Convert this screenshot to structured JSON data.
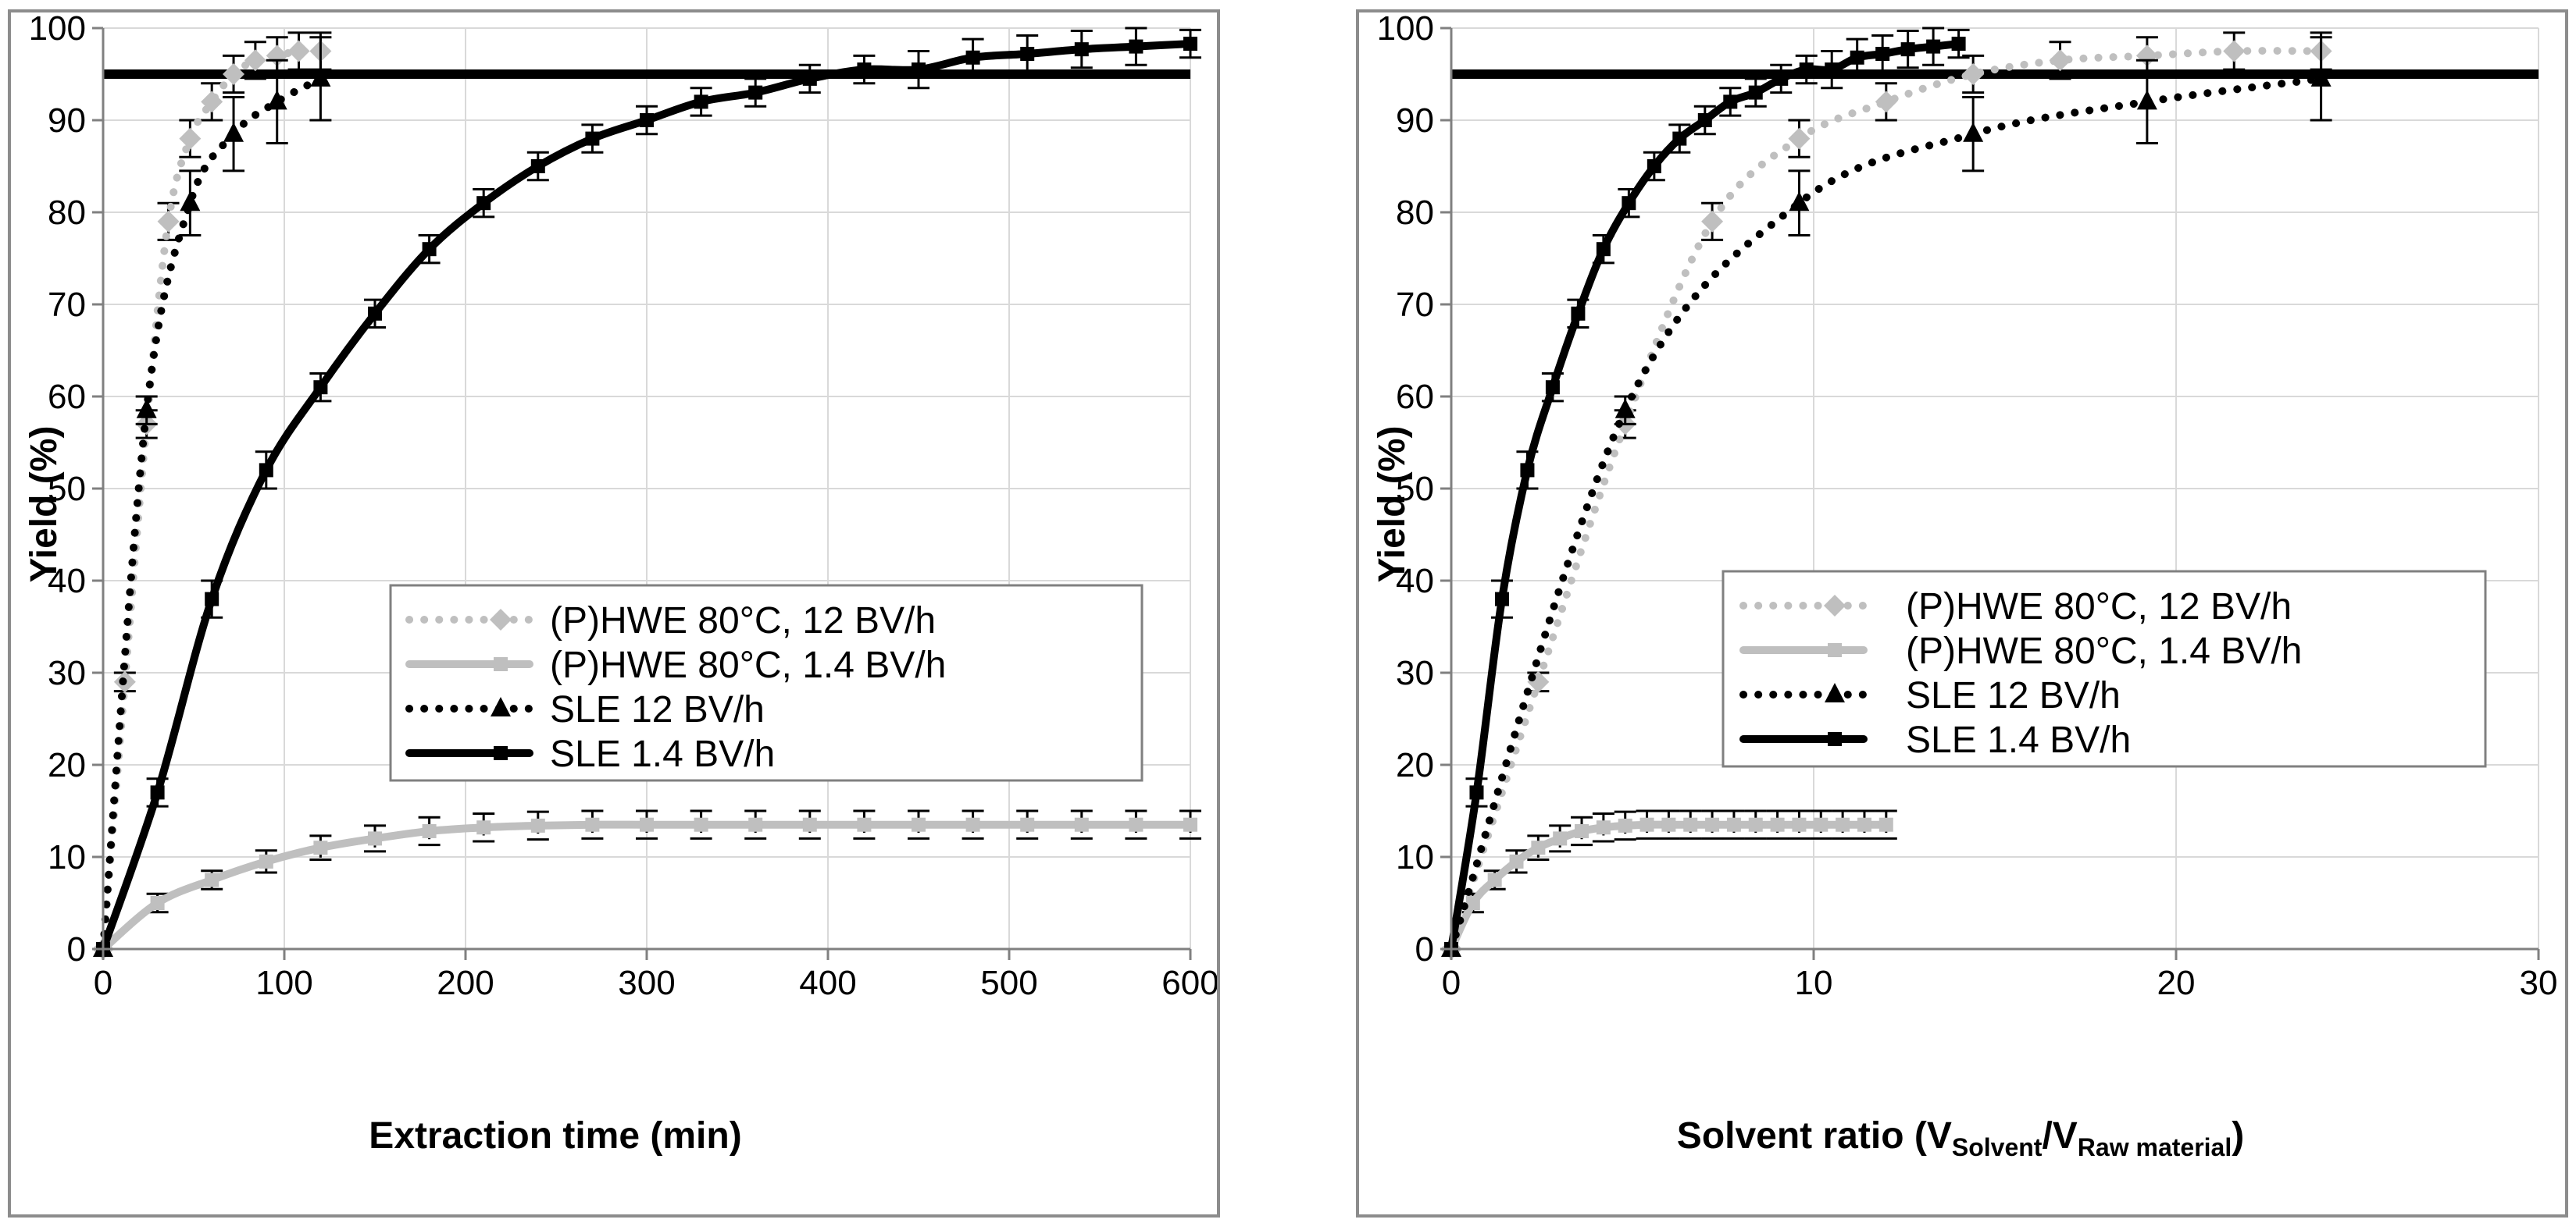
{
  "chart_data": [
    {
      "type": "line",
      "xlabel": "Extraction time (min)",
      "ylabel": "Yield (%)",
      "xlim": [
        0,
        600
      ],
      "ylim": [
        0,
        100
      ],
      "xticks": [
        0,
        100,
        200,
        300,
        400,
        500,
        600
      ],
      "yticks": [
        0,
        10,
        20,
        30,
        40,
        50,
        60,
        70,
        80,
        90,
        100
      ],
      "xtick_labels": [
        "0",
        "100",
        "200",
        "300",
        "400",
        "500",
        "600"
      ],
      "ytick_labels": [
        "0",
        "10",
        "20",
        "30",
        "40",
        "50",
        "60",
        "70",
        "80",
        "90",
        "100"
      ],
      "grid": true,
      "reference_line": 95,
      "legend_position": "center-right",
      "series": [
        {
          "name": "(P)HWE 80°C, 12 BV/h",
          "style": "dotted",
          "color": "#bfbfbf",
          "marker": "diamond",
          "x": [
            0,
            12,
            24,
            36,
            48,
            60,
            72,
            84,
            96,
            108,
            120
          ],
          "y": [
            0,
            29,
            57,
            79,
            88,
            92,
            95,
            96.5,
            97,
            97.5,
            97.5
          ],
          "err": [
            0,
            1,
            1.5,
            2,
            2,
            2,
            2,
            2,
            2,
            2,
            2
          ]
        },
        {
          "name": "(P)HWE 80°C, 1.4 BV/h",
          "style": "solid",
          "color": "#bfbfbf",
          "marker": "square",
          "x": [
            0,
            30,
            60,
            90,
            120,
            150,
            180,
            210,
            240,
            270,
            300,
            330,
            360,
            390,
            420,
            450,
            480,
            510,
            540,
            570,
            600
          ],
          "y": [
            0,
            5,
            7.5,
            9.5,
            11,
            12,
            12.8,
            13.2,
            13.4,
            13.5,
            13.5,
            13.5,
            13.5,
            13.5,
            13.5,
            13.5,
            13.5,
            13.5,
            13.5,
            13.5,
            13.5
          ],
          "err": [
            0,
            1,
            1,
            1.2,
            1.3,
            1.4,
            1.5,
            1.5,
            1.5,
            1.5,
            1.5,
            1.5,
            1.5,
            1.5,
            1.5,
            1.5,
            1.5,
            1.5,
            1.5,
            1.5,
            1.5
          ]
        },
        {
          "name": "SLE 12 BV/h",
          "style": "dotted",
          "color": "#000000",
          "marker": "triangle",
          "x": [
            0,
            24,
            48,
            72,
            96,
            120
          ],
          "y": [
            0,
            58.5,
            81,
            88.5,
            92,
            94.5
          ],
          "err": [
            0,
            1.5,
            3.5,
            4,
            4.5,
            4.5
          ]
        },
        {
          "name": "SLE 1.4 BV/h",
          "style": "solid",
          "color": "#000000",
          "marker": "square",
          "x": [
            0,
            30,
            60,
            90,
            120,
            150,
            180,
            210,
            240,
            270,
            300,
            330,
            360,
            390,
            420,
            450,
            480,
            510,
            540,
            570,
            600
          ],
          "y": [
            0,
            17,
            38,
            52,
            61,
            69,
            76,
            81,
            85,
            88,
            90,
            92,
            93,
            94.5,
            95.5,
            95.5,
            96.8,
            97.2,
            97.7,
            98,
            98.3
          ],
          "err": [
            0,
            1.5,
            2,
            2,
            1.5,
            1.5,
            1.5,
            1.5,
            1.5,
            1.5,
            1.5,
            1.5,
            1.5,
            1.5,
            1.5,
            2,
            2,
            2,
            2,
            2,
            1.5
          ]
        }
      ]
    },
    {
      "type": "line",
      "xlabel": "Solvent ratio (V",
      "xlabel_sub1": "Solvent",
      "xlabel_mid": "/V",
      "xlabel_sub2": "Raw material",
      "xlabel_end": ")",
      "ylabel": "Yield (%)",
      "xlim": [
        0,
        30
      ],
      "ylim": [
        0,
        100
      ],
      "xticks": [
        0,
        10,
        20,
        30
      ],
      "yticks": [
        0,
        10,
        20,
        30,
        40,
        50,
        60,
        70,
        80,
        90,
        100
      ],
      "xtick_labels": [
        "0",
        "10",
        "20",
        "30"
      ],
      "ytick_labels": [
        "0",
        "10",
        "20",
        "30",
        "40",
        "50",
        "60",
        "70",
        "80",
        "90",
        "100"
      ],
      "grid": true,
      "reference_line": 95,
      "legend_position": "center-right",
      "series": [
        {
          "name": "(P)HWE 80°C, 12 BV/h",
          "style": "dotted",
          "color": "#bfbfbf",
          "marker": "diamond",
          "x": [
            0,
            2.4,
            4.8,
            7.2,
            9.6,
            12,
            14.4,
            16.8,
            19.2,
            21.6,
            24
          ],
          "y": [
            0,
            29,
            57,
            79,
            88,
            92,
            95,
            96.5,
            97,
            97.5,
            97.5
          ],
          "err": [
            0,
            1,
            1.5,
            2,
            2,
            2,
            2,
            2,
            2,
            2,
            2
          ]
        },
        {
          "name": "(P)HWE 80°C, 1.4 BV/h",
          "style": "solid",
          "color": "#bfbfbf",
          "marker": "square",
          "x": [
            0,
            0.6,
            1.2,
            1.8,
            2.4,
            3,
            3.6,
            4.2,
            4.8,
            5.4,
            6,
            6.6,
            7.2,
            7.8,
            8.4,
            9,
            9.6,
            10.2,
            10.8,
            11.4,
            12
          ],
          "y": [
            0,
            5,
            7.5,
            9.5,
            11,
            12,
            12.8,
            13.2,
            13.4,
            13.5,
            13.5,
            13.5,
            13.5,
            13.5,
            13.5,
            13.5,
            13.5,
            13.5,
            13.5,
            13.5,
            13.5
          ],
          "err": [
            0,
            1,
            1,
            1.2,
            1.3,
            1.4,
            1.5,
            1.5,
            1.5,
            1.5,
            1.5,
            1.5,
            1.5,
            1.5,
            1.5,
            1.5,
            1.5,
            1.5,
            1.5,
            1.5,
            1.5
          ]
        },
        {
          "name": "SLE 12 BV/h",
          "style": "dotted",
          "color": "#000000",
          "marker": "triangle",
          "x": [
            0,
            4.8,
            9.6,
            14.4,
            19.2,
            24
          ],
          "y": [
            0,
            58.5,
            81,
            88.5,
            92,
            94.5
          ],
          "err": [
            0,
            1.5,
            3.5,
            4,
            4.5,
            4.5
          ]
        },
        {
          "name": "SLE 1.4 BV/h",
          "style": "solid",
          "color": "#000000",
          "marker": "square",
          "x": [
            0,
            0.7,
            1.4,
            2.1,
            2.8,
            3.5,
            4.2,
            4.9,
            5.6,
            6.3,
            7,
            7.7,
            8.4,
            9.1,
            9.8,
            10.5,
            11.2,
            11.9,
            12.6,
            13.3,
            14
          ],
          "y": [
            0,
            17,
            38,
            52,
            61,
            69,
            76,
            81,
            85,
            88,
            90,
            92,
            93,
            94.5,
            95.5,
            95.5,
            96.8,
            97.2,
            97.7,
            98,
            98.3
          ],
          "err": [
            0,
            1.5,
            2,
            2,
            1.5,
            1.5,
            1.5,
            1.5,
            1.5,
            1.5,
            1.5,
            1.5,
            1.5,
            1.5,
            1.5,
            2,
            2,
            2,
            2,
            2,
            1.5
          ]
        }
      ]
    }
  ]
}
